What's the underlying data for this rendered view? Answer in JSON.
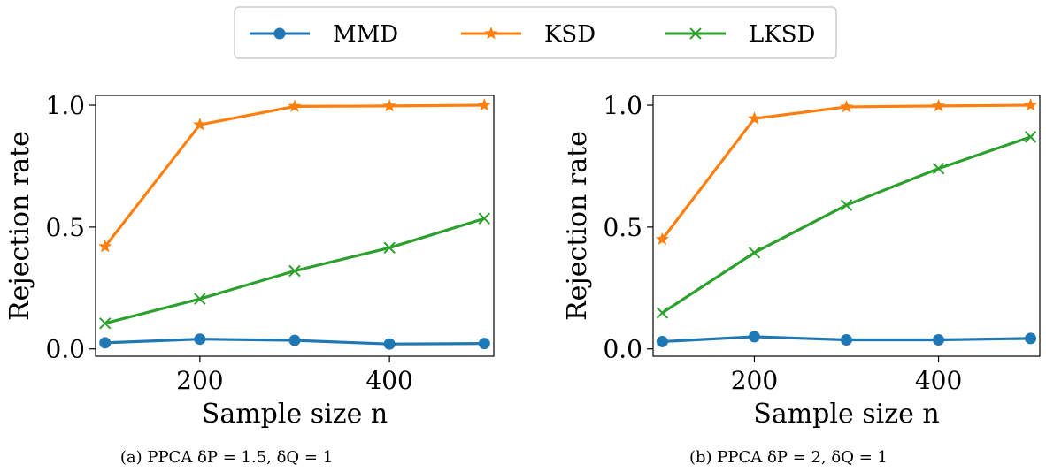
{
  "legend": {
    "items": [
      {
        "label": "MMD",
        "color": "#1f77b4",
        "marker": "circle"
      },
      {
        "label": "KSD",
        "color": "#ff7f0e",
        "marker": "star"
      },
      {
        "label": "LKSD",
        "color": "#2ca02c",
        "marker": "x"
      }
    ]
  },
  "chart_data": [
    {
      "type": "line",
      "caption": "(a) PPCA δP = 1.5, δQ = 1",
      "xlabel": "Sample size n",
      "ylabel": "Rejection rate",
      "x": [
        100,
        200,
        300,
        400,
        500
      ],
      "xlim": [
        90,
        510
      ],
      "ylim": [
        -0.03,
        1.04
      ],
      "xticks": [
        200,
        400
      ],
      "yticks": [
        0.0,
        0.5,
        1.0
      ],
      "xtick_labels": [
        "200",
        "400"
      ],
      "ytick_labels": [
        "0.0",
        "0.5",
        "1.0"
      ],
      "grid": false,
      "series": [
        {
          "name": "MMD",
          "values": [
            0.025,
            0.04,
            0.035,
            0.02,
            0.022
          ]
        },
        {
          "name": "KSD",
          "values": [
            0.42,
            0.92,
            0.995,
            0.997,
            1.0
          ]
        },
        {
          "name": "LKSD",
          "values": [
            0.105,
            0.205,
            0.32,
            0.415,
            0.535
          ]
        }
      ]
    },
    {
      "type": "line",
      "caption": "(b) PPCA δP = 2, δQ = 1",
      "xlabel": "Sample size n",
      "ylabel": "Rejection rate",
      "x": [
        100,
        200,
        300,
        400,
        500
      ],
      "xlim": [
        90,
        510
      ],
      "ylim": [
        -0.03,
        1.04
      ],
      "xticks": [
        200,
        400
      ],
      "yticks": [
        0.0,
        0.5,
        1.0
      ],
      "xtick_labels": [
        "200",
        "400"
      ],
      "ytick_labels": [
        "0.0",
        "0.5",
        "1.0"
      ],
      "grid": false,
      "series": [
        {
          "name": "MMD",
          "values": [
            0.03,
            0.05,
            0.037,
            0.037,
            0.043
          ]
        },
        {
          "name": "KSD",
          "values": [
            0.45,
            0.945,
            0.993,
            0.997,
            1.0
          ]
        },
        {
          "name": "LKSD",
          "values": [
            0.148,
            0.395,
            0.59,
            0.74,
            0.87
          ]
        }
      ]
    }
  ]
}
